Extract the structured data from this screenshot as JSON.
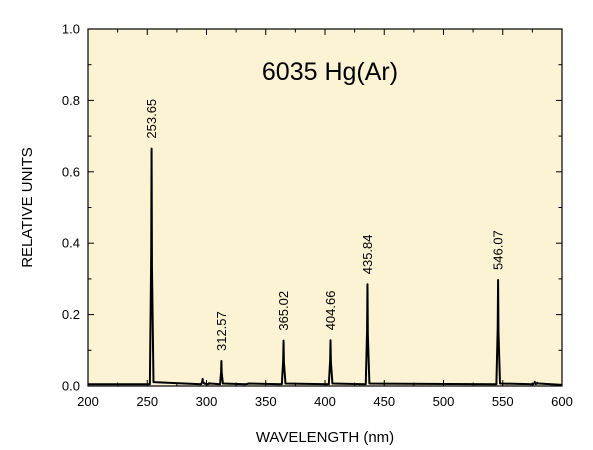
{
  "chart_data": {
    "type": "line",
    "title": "6035 Hg(Ar)",
    "xlabel": "WAVELENGTH (nm)",
    "ylabel": "RELATIVE UNITS",
    "xlim": [
      200,
      600
    ],
    "ylim": [
      0,
      1.0
    ],
    "x_ticks": [
      200,
      250,
      300,
      350,
      400,
      450,
      500,
      550,
      600
    ],
    "x_tick_labels": [
      "200",
      "250",
      "300",
      "350",
      "400",
      "450",
      "500",
      "550",
      "600"
    ],
    "y_ticks": [
      0,
      0.2,
      0.4,
      0.6,
      0.8,
      1.0
    ],
    "y_tick_labels": [
      "0.0",
      "0.2",
      "0.4",
      "0.6",
      "0.8",
      "1.0"
    ],
    "grid": false,
    "background_color": "#fbf3d3",
    "line_color": "#000000",
    "baseline": 0.005,
    "peaks": [
      {
        "x": 253.65,
        "y": 0.665,
        "label": "253.65"
      },
      {
        "x": 296.7,
        "y": 0.02,
        "label": ""
      },
      {
        "x": 302.2,
        "y": 0.008,
        "label": ""
      },
      {
        "x": 312.57,
        "y": 0.07,
        "label": "312.57"
      },
      {
        "x": 334.1,
        "y": 0.006,
        "label": ""
      },
      {
        "x": 365.02,
        "y": 0.127,
        "label": "365.02"
      },
      {
        "x": 404.66,
        "y": 0.128,
        "label": "404.66"
      },
      {
        "x": 435.84,
        "y": 0.285,
        "label": "435.84"
      },
      {
        "x": 546.07,
        "y": 0.297,
        "label": "546.07"
      },
      {
        "x": 577.0,
        "y": 0.012,
        "label": ""
      },
      {
        "x": 579.1,
        "y": 0.009,
        "label": ""
      }
    ]
  }
}
